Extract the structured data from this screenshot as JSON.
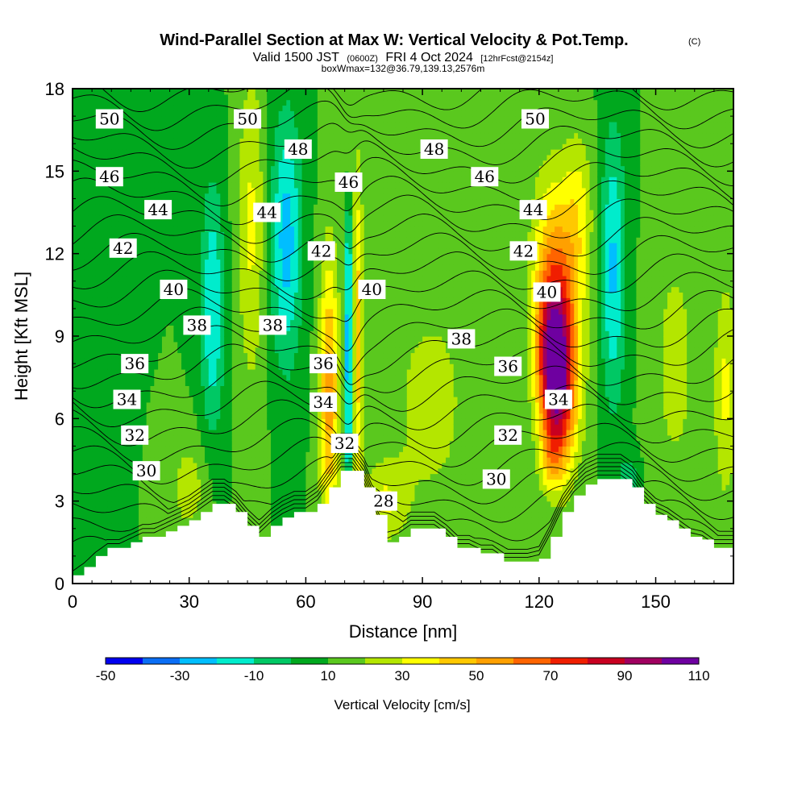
{
  "title": {
    "main": "Wind-Parallel Section at Max W: Vertical Velocity & Pot.Temp.",
    "copyright": "(C)",
    "valid_pre": "Valid 1500 JST",
    "valid_utc": "(0600Z)",
    "valid_post": "FRI 4 Oct 2024",
    "forecast": "[12hrFcst@2154z]",
    "box": "boxWmax=132@36.79,139.13,2576m"
  },
  "colorbar": {
    "label": "Vertical Velocity [cm/s]",
    "tick_labels": [
      "-50",
      "-30",
      "-10",
      "10",
      "30",
      "50",
      "70",
      "90",
      "110"
    ],
    "colors": [
      "#0000f0",
      "#0a6ef5",
      "#00beff",
      "#00eccc",
      "#00c864",
      "#00a81e",
      "#5ac81e",
      "#b4e600",
      "#ffff00",
      "#ffc800",
      "#ffa000",
      "#ff6400",
      "#f01e00",
      "#c80020",
      "#a00060",
      "#6e00a0"
    ]
  },
  "chart_data": {
    "type": "heatmap",
    "xlabel": "Distance [nm]",
    "ylabel": "Height [Kft MSL]",
    "xlim": [
      0,
      170
    ],
    "ylim": [
      0,
      18
    ],
    "x_ticks": [
      0,
      30,
      60,
      90,
      120,
      150
    ],
    "y_ticks": [
      0,
      3,
      6,
      9,
      12,
      15,
      18
    ],
    "color_scale": {
      "variable": "vertical velocity",
      "units": "cm/s",
      "min": -50,
      "max": 110,
      "interval": 10
    },
    "terrain": {
      "x": [
        0,
        3,
        6,
        9,
        12,
        15,
        18,
        21,
        24,
        27,
        30,
        33,
        36,
        39,
        42,
        45,
        48,
        51,
        54,
        57,
        60,
        63,
        66,
        69,
        72,
        75,
        78,
        81,
        84,
        87,
        90,
        93,
        96,
        99,
        102,
        105,
        108,
        111,
        114,
        117,
        120,
        123,
        126,
        129,
        132,
        135,
        138,
        141,
        144,
        147,
        150,
        153,
        156,
        159,
        162,
        165,
        168,
        170
      ],
      "height_kft": [
        0.3,
        0.6,
        1.0,
        1.3,
        1.3,
        1.5,
        1.7,
        1.7,
        1.9,
        2.1,
        2.3,
        2.6,
        2.9,
        2.9,
        2.6,
        2.1,
        1.7,
        2.1,
        2.4,
        2.6,
        2.6,
        2.9,
        3.5,
        4.1,
        4.1,
        3.5,
        2.5,
        1.5,
        1.7,
        2.0,
        2.0,
        2.0,
        1.7,
        1.3,
        1.3,
        1.1,
        1.1,
        0.8,
        0.8,
        0.8,
        0.9,
        1.7,
        2.6,
        3.2,
        3.6,
        3.8,
        3.8,
        3.8,
        3.5,
        2.9,
        2.5,
        2.3,
        2.0,
        1.7,
        1.6,
        1.3,
        1.3,
        1.3
      ]
    },
    "background_w": 10,
    "w_features": [
      {
        "x": 124,
        "y": 7.5,
        "sx": 4.5,
        "sy": 3.0,
        "w": 90,
        "tilt": -0.3
      },
      {
        "x": 125,
        "y": 10.5,
        "sx": 5.5,
        "sy": 4.0,
        "w": 50,
        "tilt": -0.4
      },
      {
        "x": 130,
        "y": 13.5,
        "sx": 4.0,
        "sy": 3.0,
        "w": 22
      },
      {
        "x": 123,
        "y": 4.5,
        "sx": 3.0,
        "sy": 1.2,
        "w": 20
      },
      {
        "x": 66,
        "y": 7.0,
        "sx": 2.5,
        "sy": 5.0,
        "w": 45
      },
      {
        "x": 73.5,
        "y": 9.0,
        "sx": 1.3,
        "sy": 6.0,
        "w": 35
      },
      {
        "x": 71,
        "y": 8.5,
        "sx": 0.9,
        "sy": 6.5,
        "w": -45
      },
      {
        "x": 71,
        "y": 15.5,
        "sx": 1.2,
        "sy": 2.5,
        "w": 15
      },
      {
        "x": 55,
        "y": 12.5,
        "sx": 4.0,
        "sy": 4.5,
        "w": -35
      },
      {
        "x": 36,
        "y": 10.0,
        "sx": 3.0,
        "sy": 4.5,
        "w": -30
      },
      {
        "x": 139,
        "y": 11.5,
        "sx": 3.2,
        "sy": 5.0,
        "w": -32
      },
      {
        "x": 143,
        "y": 3.6,
        "sx": 2.5,
        "sy": 1.0,
        "w": -20
      },
      {
        "x": 46,
        "y": 13.0,
        "sx": 3.5,
        "sy": 6.0,
        "w": 22
      },
      {
        "x": 92,
        "y": 6.5,
        "sx": 10.0,
        "sy": 4.0,
        "w": 15
      },
      {
        "x": 80,
        "y": 3.0,
        "sx": 6.0,
        "sy": 1.5,
        "w": 20
      },
      {
        "x": 155,
        "y": 8.0,
        "sx": 6.0,
        "sy": 5.0,
        "w": 14
      },
      {
        "x": 168,
        "y": 7.0,
        "sx": 3.0,
        "sy": 4.0,
        "w": 22
      },
      {
        "x": 30,
        "y": 3.5,
        "sx": 5.0,
        "sy": 1.8,
        "w": 15
      },
      {
        "x": 8,
        "y": 13.5,
        "sx": 5.0,
        "sy": 7.0,
        "w": -6
      },
      {
        "x": 100,
        "y": 14.0,
        "sx": 5.0,
        "sy": 5.0,
        "w": 2
      }
    ],
    "theta_labels": [
      {
        "text": "50",
        "x": 9.5,
        "y": 16.9
      },
      {
        "text": "50",
        "x": 45,
        "y": 16.9
      },
      {
        "text": "50",
        "x": 119,
        "y": 16.9
      },
      {
        "text": "48",
        "x": 58,
        "y": 15.8
      },
      {
        "text": "48",
        "x": 93,
        "y": 15.8
      },
      {
        "text": "46",
        "x": 9.5,
        "y": 14.8
      },
      {
        "text": "46",
        "x": 71,
        "y": 14.6
      },
      {
        "text": "46",
        "x": 106,
        "y": 14.8
      },
      {
        "text": "44",
        "x": 22,
        "y": 13.6
      },
      {
        "text": "44",
        "x": 50,
        "y": 13.5
      },
      {
        "text": "44",
        "x": 118.5,
        "y": 13.6
      },
      {
        "text": "42",
        "x": 13,
        "y": 12.2
      },
      {
        "text": "42",
        "x": 64,
        "y": 12.1
      },
      {
        "text": "42",
        "x": 116,
        "y": 12.1
      },
      {
        "text": "40",
        "x": 26,
        "y": 10.7
      },
      {
        "text": "40",
        "x": 77,
        "y": 10.7
      },
      {
        "text": "40",
        "x": 122,
        "y": 10.6
      },
      {
        "text": "38",
        "x": 32,
        "y": 9.4
      },
      {
        "text": "38",
        "x": 51.5,
        "y": 9.4
      },
      {
        "text": "38",
        "x": 100,
        "y": 8.9
      },
      {
        "text": "36",
        "x": 16,
        "y": 8.0
      },
      {
        "text": "36",
        "x": 64.5,
        "y": 8.0
      },
      {
        "text": "36",
        "x": 112,
        "y": 7.9
      },
      {
        "text": "34",
        "x": 14,
        "y": 6.7
      },
      {
        "text": "34",
        "x": 64.5,
        "y": 6.6
      },
      {
        "text": "34",
        "x": 125,
        "y": 6.7
      },
      {
        "text": "32",
        "x": 16,
        "y": 5.4
      },
      {
        "text": "32",
        "x": 70,
        "y": 5.1
      },
      {
        "text": "32",
        "x": 112,
        "y": 5.4
      },
      {
        "text": "30",
        "x": 19,
        "y": 4.1
      },
      {
        "text": "30",
        "x": 109,
        "y": 3.8
      },
      {
        "text": "28",
        "x": 80,
        "y": 3.0
      }
    ]
  }
}
